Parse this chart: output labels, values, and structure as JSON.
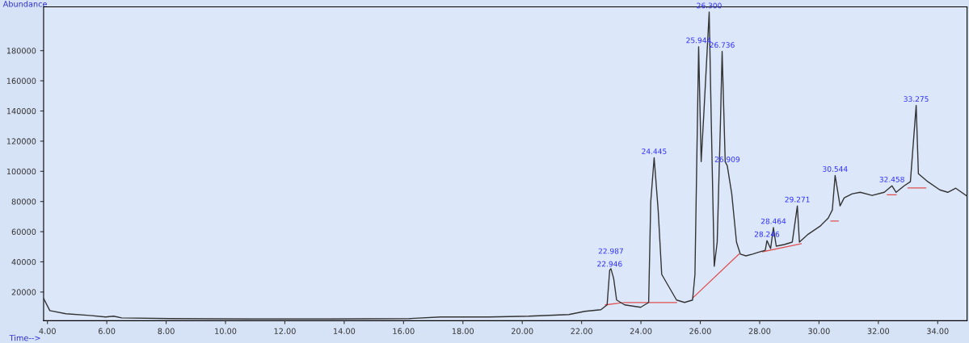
{
  "chart_data": {
    "type": "line",
    "xlabel": "Time-->",
    "ylabel": "Abundance",
    "xlim": [
      3.87,
      34.99
    ],
    "ylim": [
      1000,
      209000
    ],
    "xticks": [
      {
        "value": 4,
        "label": "4.00"
      },
      {
        "value": 6,
        "label": "6.00"
      },
      {
        "value": 8,
        "label": "8.00"
      },
      {
        "value": 10,
        "label": "10.00"
      },
      {
        "value": 12,
        "label": "12.00"
      },
      {
        "value": 14,
        "label": "14.00"
      },
      {
        "value": 16,
        "label": "16.00"
      },
      {
        "value": 18,
        "label": "18.00"
      },
      {
        "value": 20,
        "label": "20.00"
      },
      {
        "value": 22,
        "label": "22.00"
      },
      {
        "value": 24,
        "label": "24.00"
      },
      {
        "value": 26,
        "label": "26.00"
      },
      {
        "value": 28,
        "label": "28.00"
      },
      {
        "value": 30,
        "label": "30.00"
      },
      {
        "value": 32,
        "label": "32.00"
      },
      {
        "value": 34,
        "label": "34.00"
      }
    ],
    "yticks": [
      20000,
      40000,
      60000,
      80000,
      100000,
      120000,
      140000,
      160000,
      180000
    ],
    "grid": false,
    "marker": "none",
    "line_style": "solid",
    "series": [
      {
        "color": "#333333",
        "x": [
          3.87,
          4.08,
          4.62,
          5.43,
          5.96,
          6.23,
          6.5,
          8.12,
          10.81,
          13.5,
          16.19,
          17.26,
          18.88,
          20.22,
          21.57,
          22.11,
          22.65,
          22.86,
          22.946,
          22.987,
          23.08,
          23.18,
          23.45,
          23.99,
          24.26,
          24.33,
          24.445,
          24.58,
          24.7,
          25.2,
          25.47,
          25.74,
          25.82,
          25.944,
          26.03,
          26.12,
          26.3,
          26.37,
          26.47,
          26.57,
          26.68,
          26.736,
          26.84,
          26.909,
          27.06,
          27.22,
          27.35,
          27.54,
          27.76,
          28.02,
          28.19,
          28.246,
          28.37,
          28.464,
          28.56,
          28.83,
          29.1,
          29.271,
          29.34,
          29.64,
          30.04,
          30.31,
          30.45,
          30.544,
          30.71,
          30.85,
          31.12,
          31.39,
          31.79,
          32.2,
          32.458,
          32.6,
          32.87,
          33.08,
          33.275,
          33.35,
          33.67,
          34.07,
          34.34,
          34.61,
          34.99
        ],
        "values": [
          15700,
          7700,
          5600,
          4500,
          3500,
          4000,
          2900,
          2400,
          2100,
          2100,
          2400,
          3500,
          3500,
          4000,
          5100,
          7200,
          8300,
          11500,
          34400,
          35500,
          29100,
          14700,
          11500,
          9900,
          13100,
          79700,
          109000,
          74400,
          31700,
          14700,
          13100,
          14700,
          31700,
          182600,
          106400,
          138400,
          205600,
          133100,
          37100,
          53100,
          133100,
          179500,
          106400,
          103700,
          85100,
          53100,
          45100,
          44000,
          45100,
          46700,
          47700,
          54100,
          48800,
          62700,
          50400,
          51500,
          53100,
          77100,
          53100,
          58400,
          63700,
          69000,
          74400,
          97300,
          77100,
          82400,
          85100,
          86100,
          84000,
          86100,
          90400,
          86100,
          90400,
          93100,
          143700,
          98400,
          93100,
          87700,
          86100,
          88800,
          83500
        ]
      },
      {
        "color": "#e05050",
        "x": [
          22.8,
          23.45,
          25.2
        ],
        "values": [
          11500,
          13100,
          13100
        ]
      },
      {
        "color": "#e05050",
        "x": [
          25.74,
          27.3
        ],
        "values": [
          16000,
          45100
        ]
      },
      {
        "color": "#e05050",
        "x": [
          28.1,
          29.4
        ],
        "values": [
          46700,
          52000
        ]
      },
      {
        "color": "#e05050",
        "x": [
          30.4,
          30.65
        ],
        "values": [
          67000,
          67000
        ]
      },
      {
        "color": "#e05050",
        "x": [
          32.3,
          32.6
        ],
        "values": [
          84500,
          84500
        ]
      },
      {
        "color": "#e05050",
        "x": [
          33.0,
          33.6
        ],
        "values": [
          89000,
          89000
        ]
      }
    ],
    "annotations": [
      {
        "text": "22.946",
        "x": 22.946,
        "y": 34400
      },
      {
        "text": "22.987",
        "x": 22.987,
        "y": 35500
      },
      {
        "text": "24.445",
        "x": 24.445,
        "y": 109000
      },
      {
        "text": "25.944",
        "x": 25.944,
        "y": 182600
      },
      {
        "text": "26.300",
        "x": 26.3,
        "y": 205600
      },
      {
        "text": "26.736",
        "x": 26.736,
        "y": 179500
      },
      {
        "text": "26.909",
        "x": 26.909,
        "y": 103700
      },
      {
        "text": "28.246",
        "x": 28.246,
        "y": 54100
      },
      {
        "text": "28.464",
        "x": 28.464,
        "y": 62700
      },
      {
        "text": "29.271",
        "x": 29.271,
        "y": 77100
      },
      {
        "text": "30.544",
        "x": 30.544,
        "y": 97300
      },
      {
        "text": "32.458",
        "x": 32.458,
        "y": 90400
      },
      {
        "text": "33.275",
        "x": 33.275,
        "y": 143700
      }
    ]
  }
}
